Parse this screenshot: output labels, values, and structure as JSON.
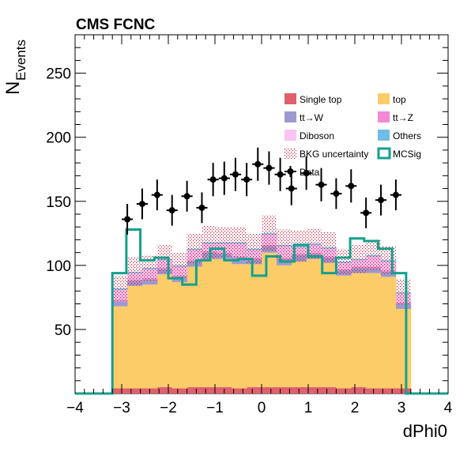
{
  "chart_data": {
    "type": "histogram",
    "title": "CMS FCNC",
    "xlabel": "dPhi0",
    "ylabel_main": "N",
    "ylabel_sub": "Events",
    "xlim": [
      -4,
      4
    ],
    "ylim": [
      0,
      280
    ],
    "x_ticks": [
      -4,
      -3,
      -2,
      -1,
      0,
      1,
      2,
      3,
      4
    ],
    "y_ticks": [
      50,
      100,
      150,
      200,
      250
    ],
    "bin_edges": [
      -3.2,
      -2.88,
      -2.56,
      -2.24,
      -1.92,
      -1.6,
      -1.28,
      -0.96,
      -0.64,
      -0.32,
      0,
      0.32,
      0.64,
      0.96,
      1.28,
      1.6,
      1.92,
      2.24,
      2.56,
      2.88,
      3.2
    ],
    "stack": [
      {
        "name": "Single top",
        "color": "#e0606e",
        "values": [
          4,
          4,
          4,
          5,
          4,
          5,
          5,
          5,
          4,
          5,
          5,
          5,
          5,
          5,
          5,
          4,
          5,
          4,
          4,
          4
        ]
      },
      {
        "name": "top",
        "color": "#fccc69",
        "values": [
          64,
          80,
          81,
          88,
          83,
          94,
          100,
          100,
          97,
          96,
          105,
          95,
          98,
          100,
          97,
          88,
          89,
          90,
          87,
          62
        ]
      },
      {
        "name": "tt→W",
        "color": "#9e9ad1",
        "values": [
          4,
          4,
          4,
          4,
          4,
          4,
          5,
          4,
          5,
          4,
          5,
          5,
          5,
          4,
          4,
          4,
          4,
          4,
          4,
          4
        ]
      },
      {
        "name": "tt→Z",
        "color": "#f288d6",
        "values": [
          1,
          1,
          1,
          1,
          1,
          1,
          1,
          1,
          1,
          1,
          1,
          1,
          1,
          1,
          1,
          1,
          1,
          1,
          1,
          1
        ]
      },
      {
        "name": "Diboson",
        "color": "#fcc4f3",
        "values": [
          8,
          5,
          7,
          6,
          7,
          8,
          6,
          7,
          10,
          6,
          8,
          9,
          5,
          6,
          6,
          5,
          5,
          8,
          7,
          7
        ]
      },
      {
        "name": "Others",
        "color": "#6ebde8",
        "values": [
          1,
          1,
          1,
          1,
          1,
          1,
          1,
          1,
          1,
          1,
          1,
          1,
          1,
          1,
          1,
          1,
          1,
          1,
          1,
          1
        ]
      }
    ],
    "bkg_uncertainty": {
      "name": "BKG uncertainty",
      "color": "#c8203a",
      "values": [
        10,
        11,
        10,
        11,
        10,
        12,
        13,
        12,
        12,
        12,
        14,
        12,
        12,
        12,
        12,
        10,
        11,
        12,
        11,
        10
      ]
    },
    "signal": {
      "name": "MCSig",
      "color": "#14a08c",
      "values": [
        94,
        128,
        104,
        106,
        90,
        85,
        104,
        113,
        104,
        105,
        92,
        107,
        103,
        116,
        107,
        94,
        106,
        121,
        119,
        113,
        94
      ]
    },
    "data": {
      "name": "Data",
      "x": [
        -2.88,
        -2.56,
        -2.24,
        -1.92,
        -1.6,
        -1.28,
        -1.04,
        -0.8,
        -0.56,
        -0.32,
        -0.08,
        0.16,
        0.4,
        0.64,
        0.96,
        1.28,
        1.6,
        1.92,
        2.24,
        2.56,
        2.88
      ],
      "y": [
        136,
        148,
        155,
        143,
        154,
        145,
        167,
        168,
        171,
        167,
        179,
        176,
        171,
        160,
        172,
        163,
        156,
        162,
        141,
        151,
        155
      ],
      "err": [
        12,
        12,
        12,
        12,
        12,
        12,
        13,
        13,
        13,
        13,
        13,
        13,
        13,
        13,
        13,
        13,
        12,
        13,
        12,
        12,
        12
      ],
      "xerr": 0.12
    },
    "legend_position": "top-right",
    "legend_columns": 2,
    "grid": false
  }
}
